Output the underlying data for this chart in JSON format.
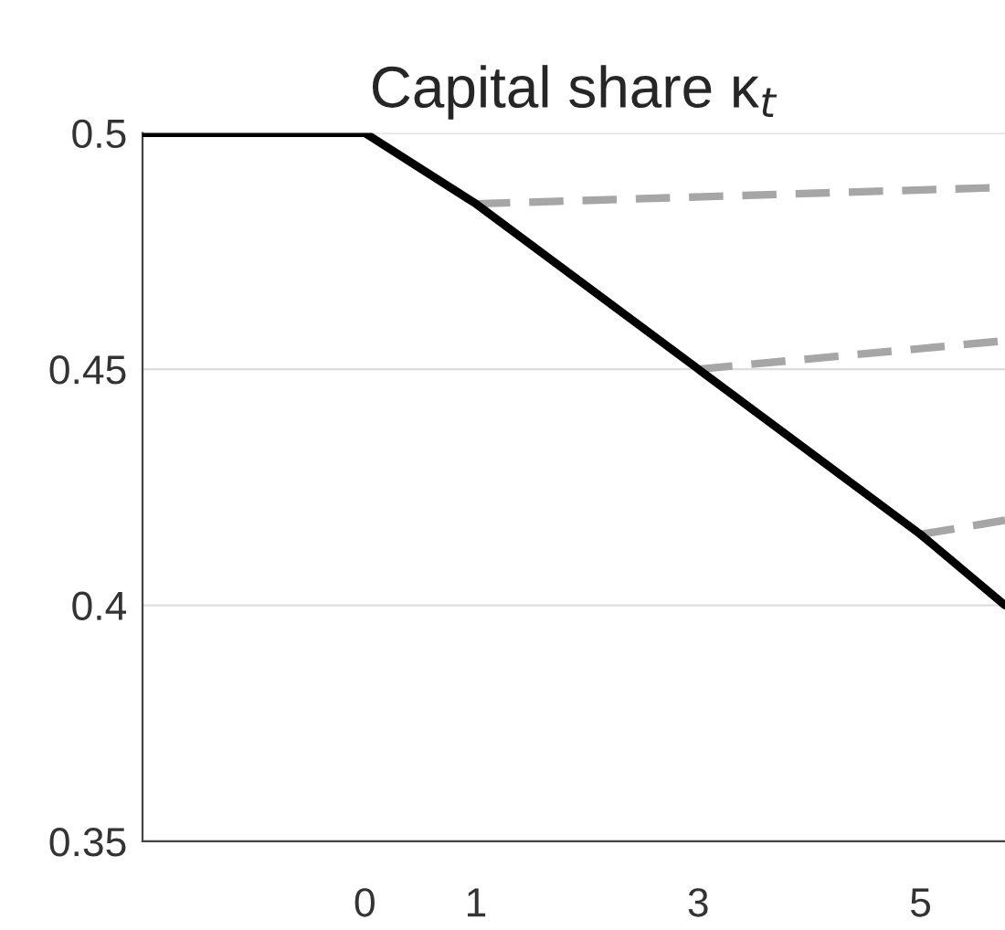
{
  "chart_data": {
    "type": "line",
    "title": "Capital share κ$_{t}$",
    "xlim": [
      -2,
      5.76
    ],
    "xticks": [
      0,
      1,
      3,
      5
    ],
    "ylim": [
      0.35,
      0.5
    ],
    "yticks": [
      0.35,
      0.4,
      0.45,
      0.5
    ],
    "grid": "y",
    "marker": "none",
    "series": [
      {
        "color": "#000000",
        "line_style": "solid",
        "x": [
          -2,
          0,
          1,
          3,
          5,
          5.76
        ],
        "values": [
          0.5,
          0.5,
          0.485,
          0.45,
          0.415,
          0.4
        ]
      },
      {
        "color": "#a6a6a6",
        "line_style": "dashed",
        "x": [
          1,
          5.76
        ],
        "values": [
          0.485,
          0.4885
        ]
      },
      {
        "color": "#a6a6a6",
        "line_style": "dashed",
        "x": [
          3,
          5.76
        ],
        "values": [
          0.45,
          0.456
        ]
      },
      {
        "color": "#a6a6a6",
        "line_style": "dashed",
        "x": [
          5,
          5.76
        ],
        "values": [
          0.415,
          0.418
        ]
      }
    ]
  }
}
